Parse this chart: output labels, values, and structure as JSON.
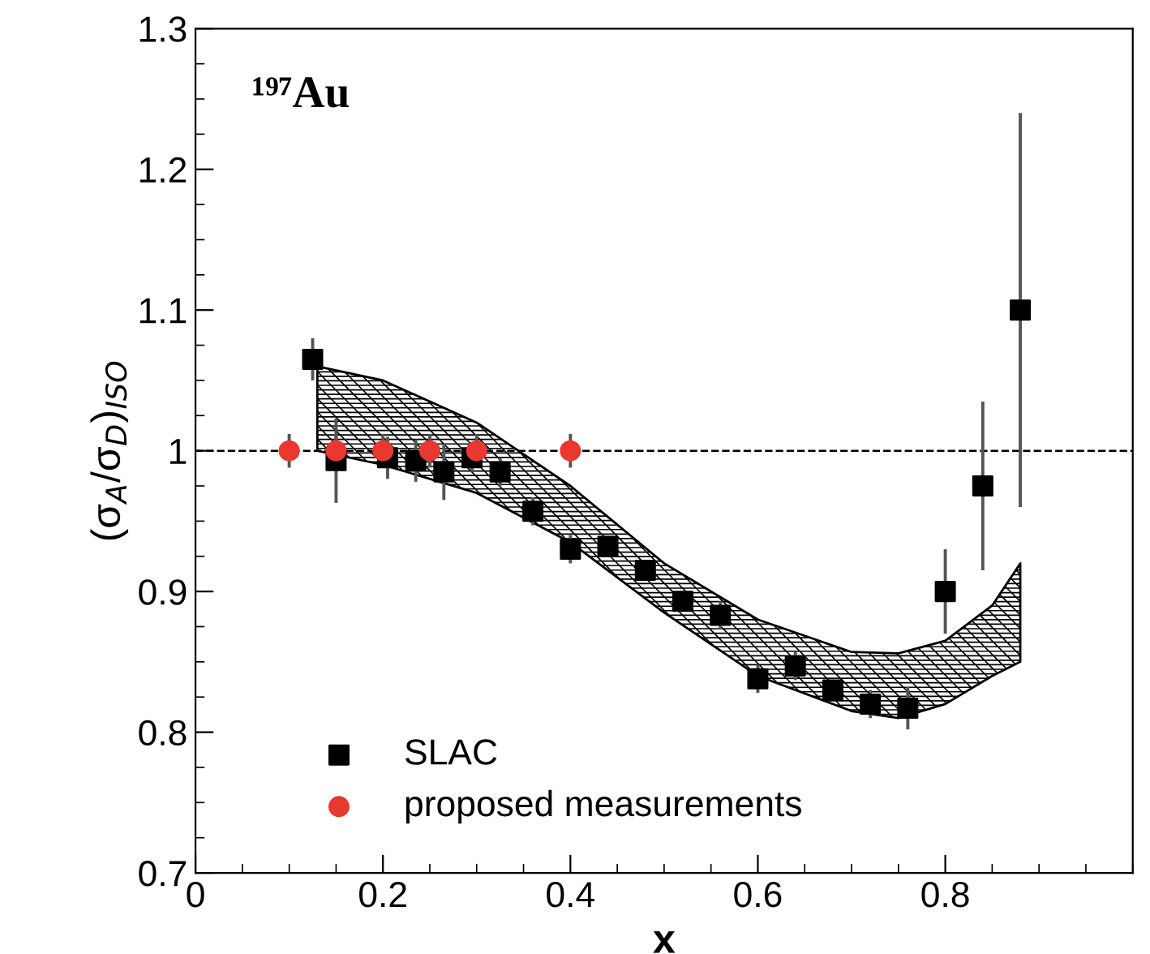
{
  "chart_data": {
    "type": "scatter",
    "xlabel": "x",
    "ylabel": "(σ$_{A}$/σ$_{D}$)$_{ISO}$",
    "annotations": [
      "¹⁹⁷Au"
    ],
    "xlim": [
      0,
      1.0
    ],
    "xticks": [
      0,
      0.2,
      0.4,
      0.6,
      0.8
    ],
    "ylim": [
      0.7,
      1.3
    ],
    "yticks": [
      0.7,
      0.8,
      0.9,
      1,
      1.1,
      1.2,
      1.3
    ],
    "ref_lines": [
      {
        "axis": "y",
        "value": 1,
        "color": "#000000",
        "line_style": "dashed"
      }
    ],
    "legend": "bottom left",
    "series": [
      {
        "type": "line",
        "color": "#000000",
        "x": [
          0.13,
          0.2,
          0.3,
          0.4,
          0.5,
          0.6,
          0.7,
          0.75,
          0.8,
          0.85,
          0.88
        ],
        "values": [
          null,
          null,
          null,
          null,
          null,
          null,
          null,
          null,
          null,
          null,
          null
        ],
        "lower": [
          1.0,
          0.99,
          0.97,
          0.935,
          0.885,
          0.84,
          0.815,
          0.81,
          0.82,
          0.84,
          0.85
        ],
        "upper": [
          1.06,
          1.05,
          1.02,
          0.975,
          0.92,
          0.88,
          0.857,
          0.856,
          0.865,
          0.89,
          0.92
        ]
      },
      {
        "name": "SLAC",
        "color": "#000000",
        "marker": "square",
        "x": [
          0.125,
          0.15,
          0.205,
          0.235,
          0.265,
          0.295,
          0.325,
          0.36,
          0.4,
          0.44,
          0.48,
          0.52,
          0.56,
          0.6,
          0.64,
          0.68,
          0.72,
          0.76,
          0.8,
          0.84,
          0.88
        ],
        "values": [
          1.065,
          0.993,
          0.995,
          0.993,
          0.985,
          0.995,
          0.985,
          0.957,
          0.93,
          0.932,
          0.915,
          0.893,
          0.883,
          0.838,
          0.847,
          0.83,
          0.82,
          0.817,
          0.9,
          0.975,
          1.1
        ],
        "errors": [
          0.015,
          0.03,
          0.015,
          0.015,
          0.02,
          0.01,
          0.01,
          0.01,
          0.01,
          null,
          null,
          null,
          0.01,
          0.01,
          0.01,
          null,
          0.01,
          0.015,
          0.03,
          0.06,
          0.14
        ]
      },
      {
        "name": "proposed measurements",
        "color": "#e8382f",
        "marker": "circle",
        "x": [
          0.1,
          0.15,
          0.2,
          0.25,
          0.3,
          0.4
        ],
        "values": [
          1,
          1,
          1,
          1,
          1,
          1
        ],
        "errors": [
          0.012,
          0.012,
          0.012,
          0.012,
          0.012,
          0.012
        ]
      }
    ]
  }
}
